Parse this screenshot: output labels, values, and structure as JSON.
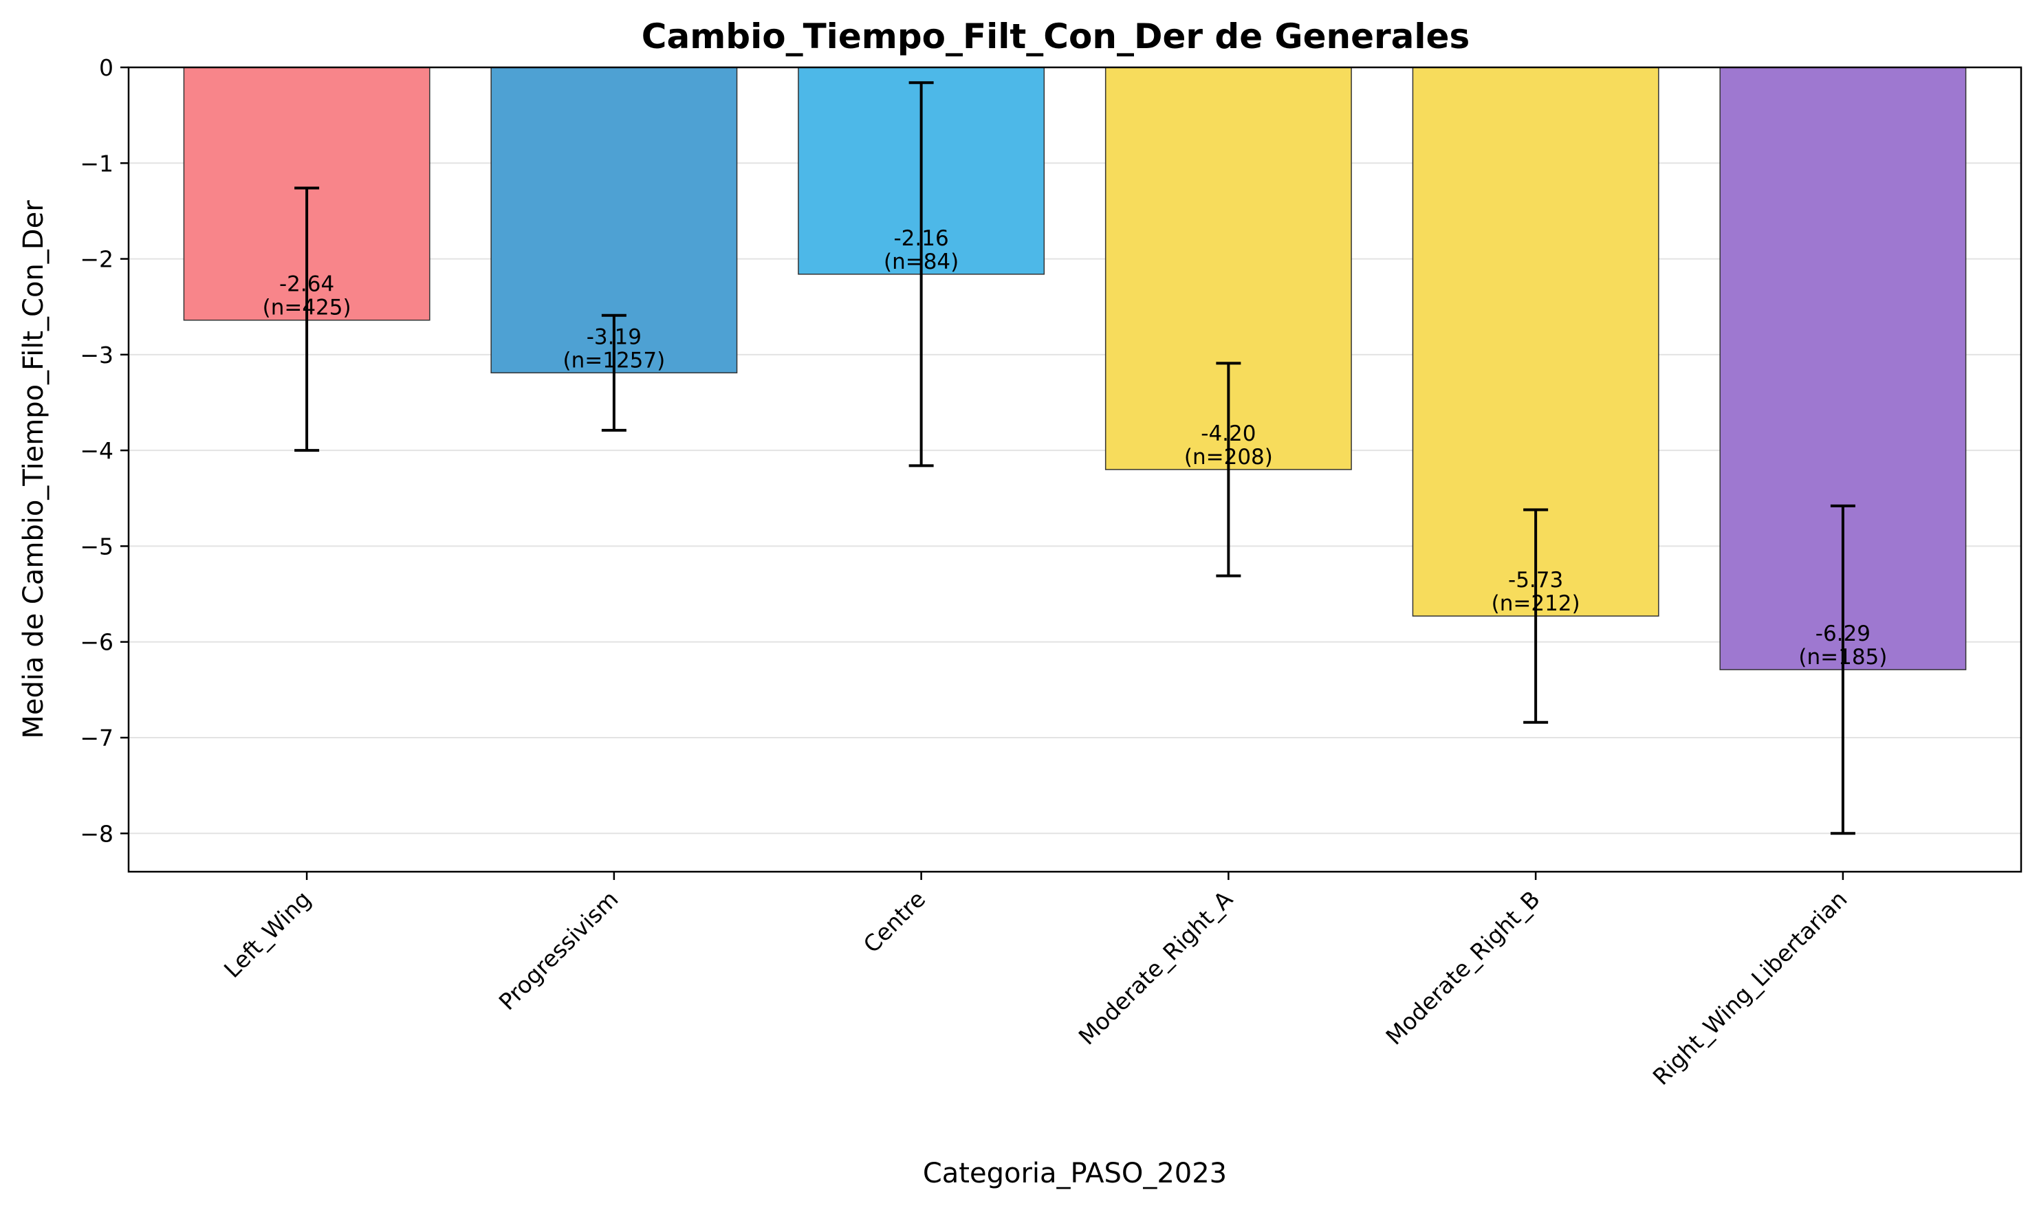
{
  "chart_data": {
    "type": "bar",
    "title": "Cambio_Tiempo_Filt_Con_Der de Generales",
    "xlabel": "Categoria_PASO_2023",
    "ylabel": "Media de Cambio_Tiempo_Filt_Con_Der",
    "categories": [
      "Left_Wing",
      "Progressivism",
      "Centre",
      "Moderate_Right_A",
      "Moderate_Right_B",
      "Right_Wing_Libertarian"
    ],
    "values": [
      -2.64,
      -3.19,
      -2.16,
      -4.2,
      -5.73,
      -6.29
    ],
    "error_low": [
      -4.0,
      -3.79,
      -4.16,
      -5.31,
      -6.84,
      -8.0
    ],
    "error_high": [
      -1.26,
      -2.59,
      -0.16,
      -3.09,
      -4.62,
      -4.58
    ],
    "value_labels": [
      "-2.64",
      "-3.19",
      "-2.16",
      "-4.20",
      "-5.73",
      "-6.29"
    ],
    "n_labels": [
      "(n=425)",
      "(n=1257)",
      "(n=84)",
      "(n=208)",
      "(n=212)",
      "(n=185)"
    ],
    "colors": [
      "#f8858a",
      "#4ea1d3",
      "#4db8e8",
      "#f7dc5c",
      "#f7dc5c",
      "#9e78d0"
    ],
    "ylim": [
      -8.4,
      0
    ],
    "yticks": [
      0,
      -1,
      -2,
      -3,
      -4,
      -5,
      -6,
      -7,
      -8
    ],
    "ytick_labels": [
      "0",
      "−1",
      "−2",
      "−3",
      "−4",
      "−5",
      "−6",
      "−7",
      "−8"
    ],
    "grid": "horizontal"
  }
}
